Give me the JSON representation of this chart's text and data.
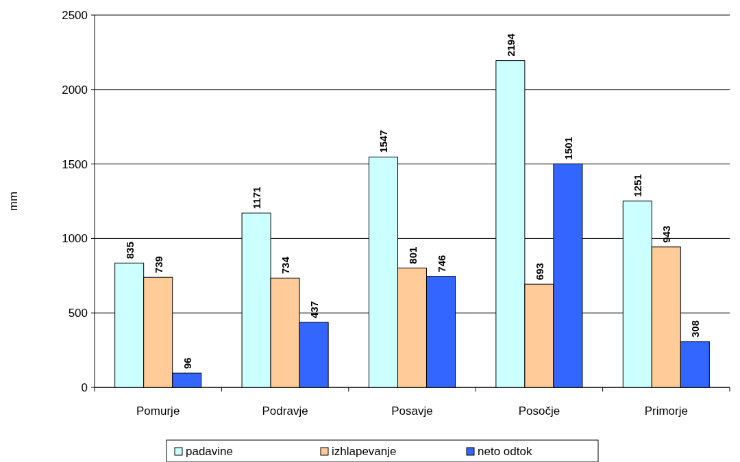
{
  "chart_data": {
    "type": "bar",
    "ylabel": "mm",
    "categories": [
      "Pomurje",
      "Podravje",
      "Posavje",
      "Posočje",
      "Primorje"
    ],
    "series": [
      {
        "name": "padavine",
        "color": "#ccffff",
        "values": [
          835,
          1171,
          1547,
          2194,
          1251
        ]
      },
      {
        "name": "izhlapevanje",
        "color": "#ffcc99",
        "values": [
          739,
          734,
          801,
          693,
          943
        ]
      },
      {
        "name": "neto odtok",
        "color": "#3366ff",
        "values": [
          96,
          437,
          746,
          1501,
          308
        ]
      }
    ],
    "ylim": [
      0,
      2500
    ],
    "yticks": [
      0,
      500,
      1000,
      1500,
      2000,
      2500
    ],
    "grid": "y",
    "legend": "bottom",
    "data_labels": true
  }
}
